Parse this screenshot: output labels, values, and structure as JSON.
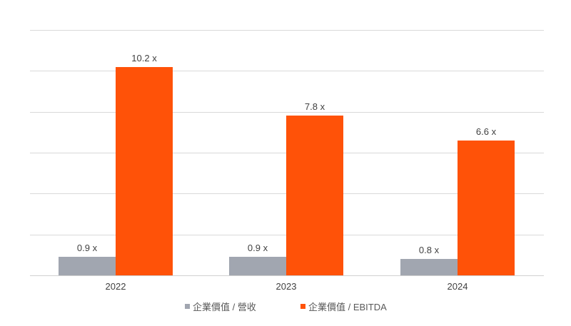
{
  "chart_data": {
    "type": "bar",
    "title": "",
    "xlabel": "",
    "ylabel": "",
    "categories": [
      "2022",
      "2023",
      "2024"
    ],
    "series": [
      {
        "name": "企業價值 / 營收",
        "values": [
          0.9,
          0.9,
          0.8
        ],
        "labels": [
          "0.9 x",
          "0.9 x",
          "0.8 x"
        ],
        "color": "#a1a6b0"
      },
      {
        "name": "企業價值 / EBITDA",
        "values": [
          10.2,
          7.8,
          6.6
        ],
        "labels": [
          "10.2 x",
          "7.8 x",
          "6.6 x"
        ],
        "color": "#ff5208"
      }
    ],
    "ylim": [
      0,
      12
    ],
    "grid": true,
    "y_axis_visible": false,
    "legend_position": "bottom"
  },
  "legend": {
    "items": [
      {
        "label": "企業價值 / 營收",
        "color": "#a1a6b0"
      },
      {
        "label": "企業價值 / EBITDA",
        "color": "#ff5208"
      }
    ]
  }
}
